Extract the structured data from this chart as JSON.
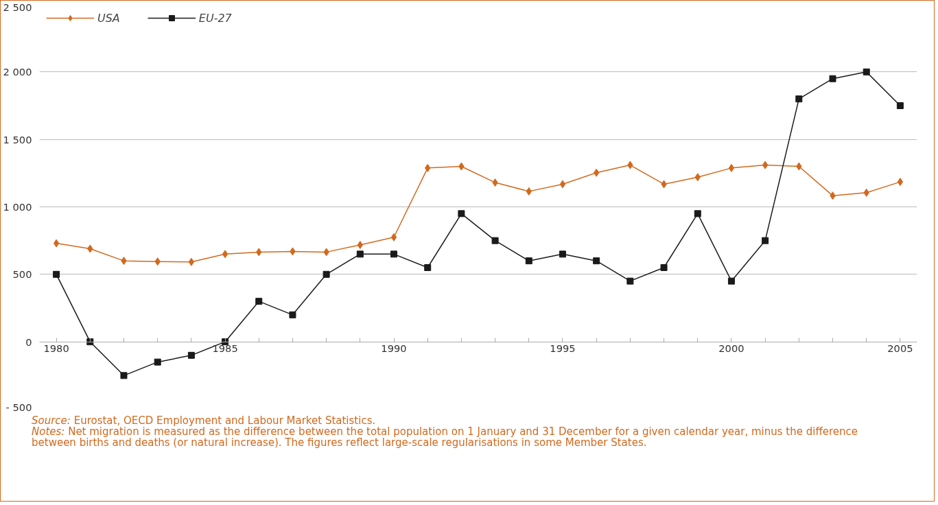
{
  "chart_data": {
    "type": "line",
    "x": [
      1980,
      1981,
      1982,
      1983,
      1984,
      1985,
      1986,
      1987,
      1988,
      1989,
      1990,
      1991,
      1992,
      1993,
      1994,
      1995,
      1996,
      1997,
      1998,
      1999,
      2000,
      2001,
      2002,
      2003,
      2004,
      2005
    ],
    "series": [
      {
        "name": "USA",
        "color": "#d2691e",
        "marker": "diamond",
        "values": [
          730,
          690,
          600,
          595,
          592,
          650,
          665,
          670,
          665,
          718,
          775,
          1288,
          1300,
          1180,
          1115,
          1168,
          1253,
          1310,
          1168,
          1220,
          1288,
          1310,
          1300,
          1083,
          1105,
          1185
        ]
      },
      {
        "name": "EU-27",
        "color": "#1a1a1a",
        "marker": "square",
        "values": [
          500,
          0,
          -250,
          -150,
          -100,
          0,
          300,
          200,
          500,
          650,
          650,
          550,
          950,
          750,
          600,
          650,
          600,
          450,
          550,
          950,
          450,
          750,
          1800,
          1950,
          2000,
          1750
        ]
      }
    ],
    "xlim": [
      1979.5,
      2005.5
    ],
    "xticks": [
      1980,
      {
        "value": 1981,
        "label": null
      },
      {
        "value": 1982,
        "label": null
      },
      {
        "value": 1983,
        "label": null
      },
      {
        "value": 1984,
        "label": null
      },
      1985,
      {
        "value": 1986,
        "label": null
      },
      {
        "value": 1987,
        "label": null
      },
      {
        "value": 1988,
        "label": null
      },
      {
        "value": 1989,
        "label": null
      },
      1990,
      {
        "value": 1991,
        "label": null
      },
      {
        "value": 1992,
        "label": null
      },
      {
        "value": 1993,
        "label": null
      },
      {
        "value": 1994,
        "label": null
      },
      1995,
      {
        "value": 1996,
        "label": null
      },
      {
        "value": 1997,
        "label": null
      },
      {
        "value": 1998,
        "label": null
      },
      {
        "value": 1999,
        "label": null
      },
      2000,
      {
        "value": 2001,
        "label": null
      },
      {
        "value": 2002,
        "label": null
      },
      {
        "value": 2003,
        "label": null
      },
      {
        "value": 2004,
        "label": null
      },
      2005
    ],
    "ylim": [
      -500,
      2500
    ],
    "yticks": [
      {
        "value": -500,
        "label": "- 500"
      },
      0,
      500,
      {
        "value": 1000,
        "label": "1 000"
      },
      {
        "value": 1500,
        "label": "1 500"
      },
      {
        "value": 2000,
        "label": "2 000"
      },
      {
        "value": 2500,
        "label": "2 500"
      }
    ],
    "grid": "y",
    "legend": "top left",
    "line_style": "solid",
    "annotations": [
      "Source: Eurostat, OECD Employment and Labour Market Statistics.",
      "Notes: Net migration is measured as the difference between the total population on 1 January and 31 December for a given calendar year, minus the difference between births and deaths (or natural increase). The figures reflect large-scale regularisations in some Member States."
    ]
  }
}
